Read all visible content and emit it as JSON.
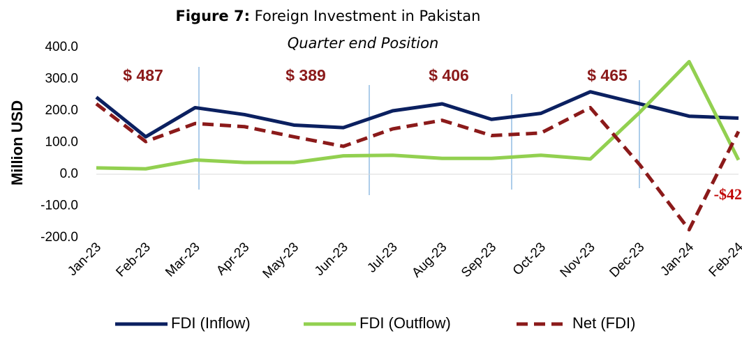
{
  "chart_data": {
    "type": "line",
    "title_label": "Figure 7:",
    "title": "Foreign Investment in Pakistan",
    "subtitle": "Quarter end Position",
    "y_label": "Million USD",
    "categories": [
      "Jan-23",
      "Feb-23",
      "Mar-23",
      "Apr-23",
      "May-23",
      "Jun-23",
      "Jul-23",
      "Aug-23",
      "Sep-23",
      "Oct-23",
      "Nov-23",
      "Dec-23",
      "Jan-24",
      "Feb-24"
    ],
    "series": [
      {
        "name": "FDI (Inflow)",
        "color": "#0b2060",
        "dash": false,
        "values": [
          243,
          118,
          210,
          188,
          155,
          147,
          200,
          222,
          173,
          192,
          260,
          222,
          183,
          177
        ]
      },
      {
        "name": "FDI (Outflow)",
        "color": "#92d050",
        "dash": false,
        "values": [
          20,
          17,
          45,
          37,
          37,
          58,
          60,
          50,
          50,
          60,
          48,
          195,
          355,
          45
        ]
      },
      {
        "name": "Net (FDI)",
        "color": "#8b1a1a",
        "dash": true,
        "values": [
          222,
          103,
          160,
          150,
          118,
          88,
          143,
          170,
          122,
          130,
          210,
          30,
          -175,
          135
        ]
      }
    ],
    "annotations": [
      "$ 487",
      "$ 389",
      "$ 406",
      "$ 465",
      "-$42"
    ],
    "ylim": [
      -200,
      400
    ],
    "yticks": [
      {
        "value": 400,
        "label": "400.0"
      },
      {
        "value": 300,
        "label": "300.0"
      },
      {
        "value": 200,
        "label": "200.0"
      },
      {
        "value": 100,
        "label": "100.0"
      },
      {
        "value": 0,
        "label": "0.0"
      },
      {
        "value": -100,
        "label": "-100.0"
      },
      {
        "value": -200,
        "label": "-200.0"
      }
    ],
    "grid": false
  }
}
